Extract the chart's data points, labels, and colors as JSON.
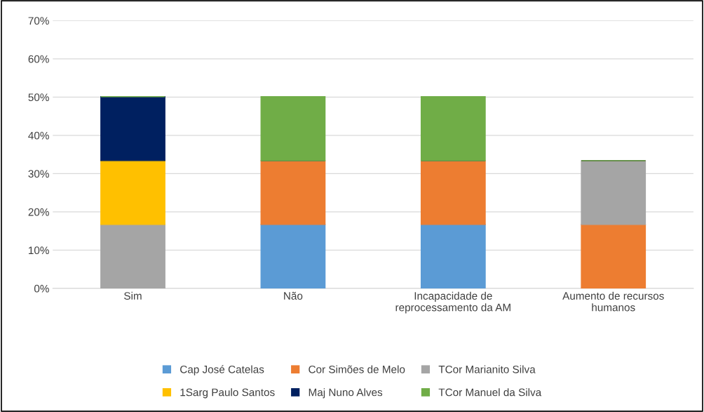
{
  "chart_data": {
    "type": "bar",
    "stacked": true,
    "categories": [
      "Sim",
      "Não",
      "Incapacidade de\nreprocessamento da AM",
      "Aumento de recursos\nhumanos"
    ],
    "series": [
      {
        "name": "Cap José Catelas",
        "color": "#5b9bd5",
        "values": [
          0,
          16.7,
          16.7,
          0
        ]
      },
      {
        "name": "Cor Simões de Melo",
        "color": "#ed7d31",
        "values": [
          0,
          16.7,
          16.7,
          16.7
        ]
      },
      {
        "name": "TCor Marianito Silva",
        "color": "#a5a5a5",
        "values": [
          16.7,
          0,
          0,
          16.7
        ]
      },
      {
        "name": "1Sarg Paulo Santos",
        "color": "#ffc000",
        "values": [
          16.7,
          0,
          0,
          0
        ]
      },
      {
        "name": "Maj Nuno Alves",
        "color": "#002060",
        "values": [
          16.7,
          0,
          0,
          0
        ]
      },
      {
        "name": "TCor Manuel da Silva",
        "color": "#70ad47",
        "values": [
          0,
          16.7,
          16.7,
          0
        ]
      }
    ],
    "ylim": [
      0,
      70
    ],
    "yticks": [
      {
        "value": 0,
        "label": "0%"
      },
      {
        "value": 10,
        "label": "10%"
      },
      {
        "value": 20,
        "label": "20%"
      },
      {
        "value": 30,
        "label": "30%"
      },
      {
        "value": 40,
        "label": "40%"
      },
      {
        "value": 50,
        "label": "50%"
      },
      {
        "value": 60,
        "label": "60%"
      },
      {
        "value": 70,
        "label": "70%"
      }
    ],
    "grid": "y",
    "legend": "bottom"
  }
}
